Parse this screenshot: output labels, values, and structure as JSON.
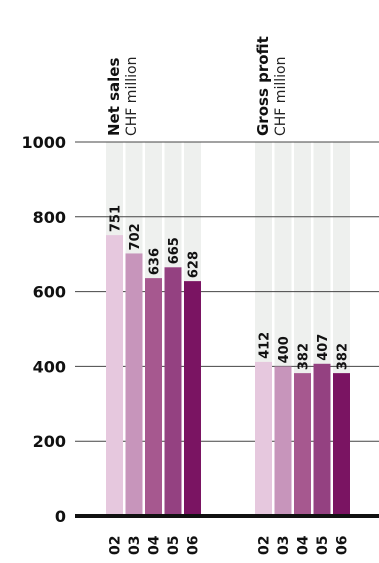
{
  "chart_data": {
    "type": "bar",
    "ylim": [
      0,
      1000
    ],
    "yticks": [
      "0",
      "200",
      "400",
      "600",
      "800",
      "1000"
    ],
    "grid": true,
    "groups": [
      {
        "title": "Net sales",
        "unit": "CHF million",
        "categories": [
          "02",
          "03",
          "04",
          "05",
          "06"
        ],
        "values": [
          751,
          702,
          636,
          665,
          628
        ]
      },
      {
        "title": "Gross profit",
        "unit": "CHF million",
        "categories": [
          "02",
          "03",
          "04",
          "05",
          "06"
        ],
        "values": [
          412,
          400,
          382,
          407,
          382
        ]
      }
    ],
    "colors": [
      "#e6c8de",
      "#c795bb",
      "#a6588f",
      "#944181",
      "#7a1462"
    ],
    "background_band_color": "#eef0ee",
    "gridline_color": "#444444",
    "axis_color": "#111111"
  }
}
